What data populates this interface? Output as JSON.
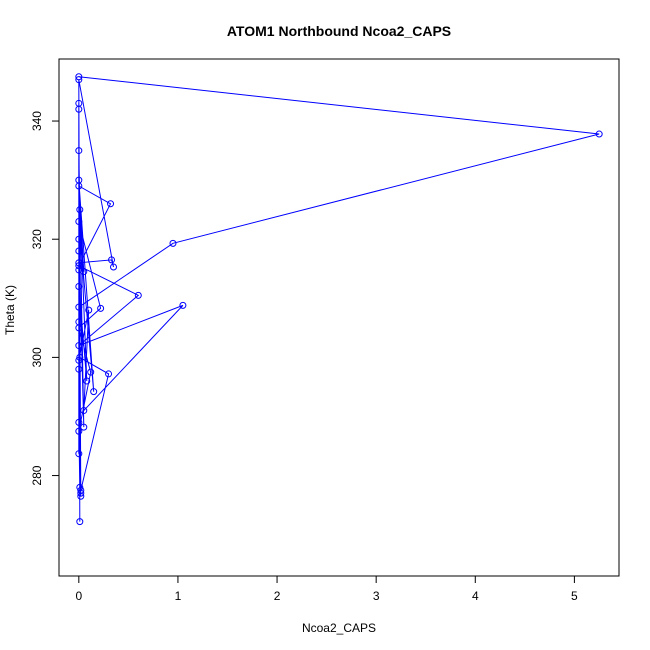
{
  "chart_data": {
    "type": "line",
    "title": "ATOM1 Northbound Ncoa2_CAPS",
    "xlabel": "Ncoa2_CAPS",
    "ylabel": "Theta (K)",
    "xlim": [
      -0.2,
      5.45
    ],
    "ylim": [
      263.0,
      350.5
    ],
    "x_ticks": [
      0,
      1,
      2,
      3,
      4,
      5
    ],
    "y_ticks": [
      280,
      300,
      320,
      340
    ],
    "grid": false,
    "legend": "none",
    "colors": {
      "series": "#0000ff",
      "axes": "#000000"
    },
    "series": [
      {
        "x": [
          0.0,
          5.25,
          0.95,
          0.0,
          0.02,
          0.0,
          0.1,
          0.05,
          1.05,
          0.0,
          0.6,
          0.0,
          0.32,
          0.0,
          0.05,
          0.0,
          0.33,
          0.35,
          0.0,
          0.01,
          0.3,
          0.02,
          0.0,
          0.12,
          0.0,
          0.22,
          0.0,
          0.15,
          0.0,
          0.08,
          0.0,
          0.0,
          0.05,
          0.0,
          0.01,
          0.0,
          0.02,
          0.0,
          0.0,
          0.01,
          0.0,
          0.0,
          0.0,
          0.0,
          0.0,
          0.01
        ],
        "y": [
          347.5,
          337.8,
          319.3,
          308.5,
          277.0,
          299.5,
          308.0,
          291.0,
          308.8,
          302.0,
          310.5,
          315.5,
          326.0,
          329.0,
          314.5,
          316.0,
          316.5,
          315.3,
          347.0,
          300.0,
          297.2,
          277.5,
          287.5,
          297.5,
          305.0,
          308.3,
          323.0,
          294.2,
          330.0,
          296.0,
          312.0,
          320.0,
          288.2,
          335.0,
          272.2,
          343.0,
          276.5,
          318.0,
          298.0,
          325.0,
          283.7,
          342.0,
          306.0,
          314.8,
          289.0,
          278.0
        ]
      }
    ]
  }
}
